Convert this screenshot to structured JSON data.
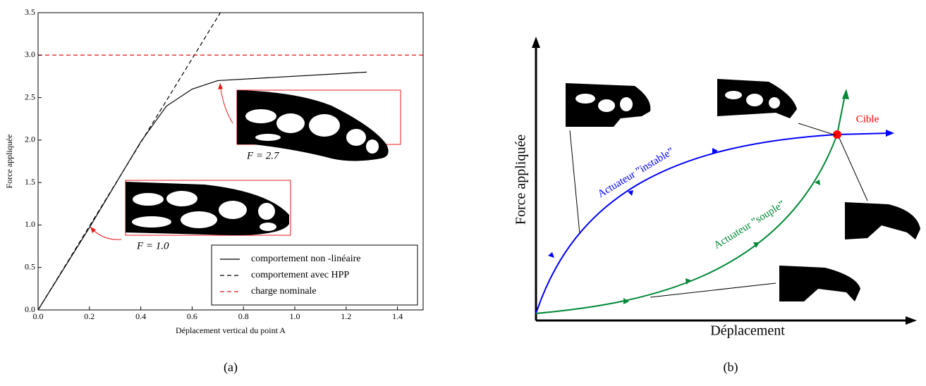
{
  "chart_data": [
    {
      "type": "line",
      "xlabel": "Déplacement vertical du point A",
      "ylabel": "Force appliquée",
      "xlim": [
        0,
        1.5
      ],
      "ylim": [
        0,
        3.5
      ],
      "xticks": [
        {
          "value": 0,
          "label": "0.0"
        },
        0.2,
        0.4,
        0.6,
        0.8,
        {
          "value": 1,
          "label": "1.0"
        },
        1.2,
        1.4
      ],
      "yticks": [
        {
          "value": 0,
          "label": "0.0"
        },
        0.5,
        {
          "value": 1,
          "label": "1.0"
        },
        1.5,
        {
          "value": 2,
          "label": "2.0"
        },
        2.5,
        {
          "value": 3,
          "label": "3.0"
        },
        3.5
      ],
      "legend": "lower right",
      "series": [
        {
          "name": "comportement non -linéaire",
          "color": "#000000",
          "linestyle": "solid",
          "x": [
            0,
            0.2,
            0.4,
            0.5,
            0.6,
            0.7,
            1.28
          ],
          "values": [
            0,
            0.97,
            1.98,
            2.4,
            2.6,
            2.7,
            2.8
          ]
        },
        {
          "name": "comportement avec HPP",
          "color": "#000000",
          "linestyle": "dashed",
          "x": [
            0,
            0.71
          ],
          "values": [
            0,
            3.5
          ]
        },
        {
          "name": "charge nominale",
          "color": "#e41a1c",
          "linestyle": "dashed",
          "x": [
            0,
            1.5
          ],
          "values": [
            3,
            3
          ]
        }
      ],
      "annotations": [
        "F = 2.7",
        "F = 1.0"
      ],
      "caption": "(a)"
    },
    {
      "type": "schematic",
      "xlabel": "Déplacement",
      "ylabel": "Force appliquée",
      "curve_labels": [
        "Actuateur ”instable”",
        "Actuateur ”souple”"
      ],
      "target_label": "Cible",
      "caption": "(b)"
    }
  ]
}
